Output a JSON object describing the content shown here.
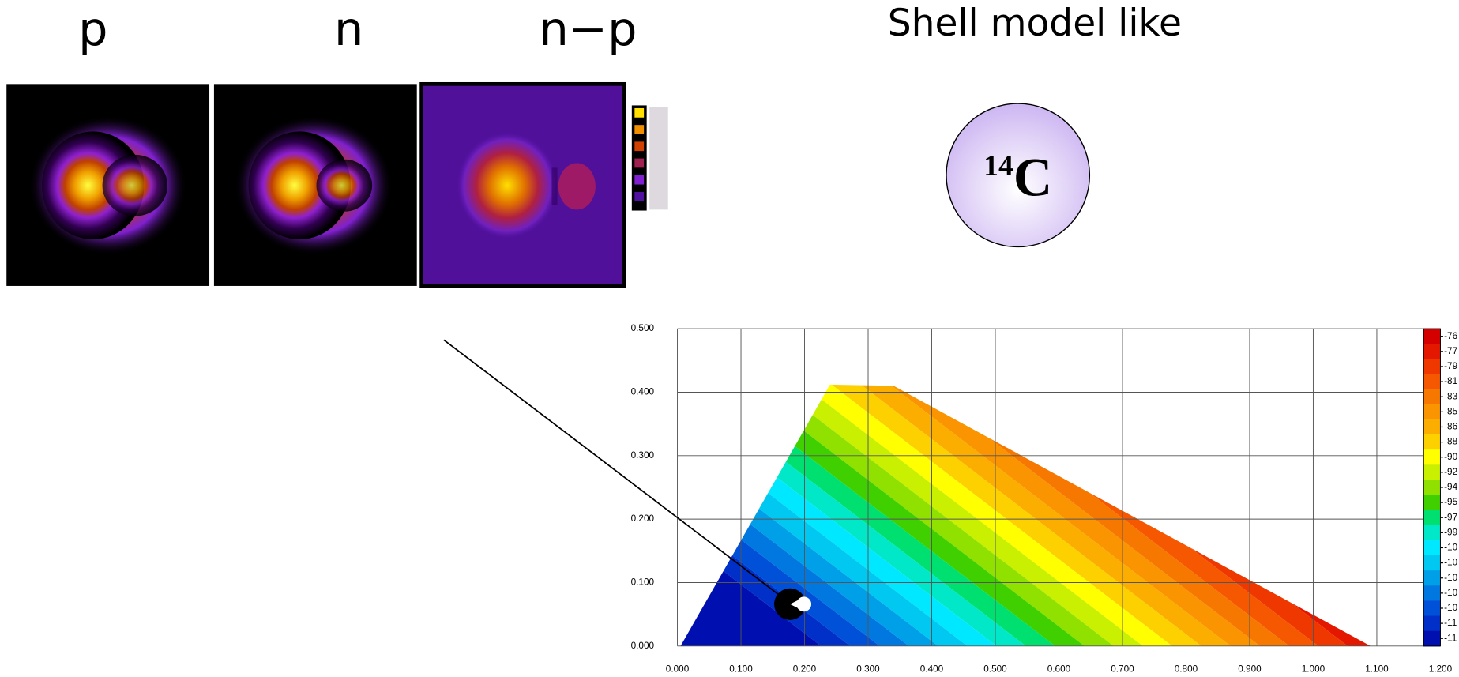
{
  "panels": [
    {
      "label": "p"
    },
    {
      "label": "n"
    },
    {
      "label": "n−p"
    }
  ],
  "heading": "Shell model like",
  "nucleus": {
    "mass_number": "14",
    "symbol": "C"
  },
  "chart_data": {
    "type": "contour",
    "grid": true,
    "xlim": [
      0,
      1.2
    ],
    "ylim": [
      0,
      0.5
    ],
    "xticks": [
      {
        "value": 0,
        "label": "0.000"
      },
      {
        "value": 0.1,
        "label": "0.100"
      },
      {
        "value": 0.2,
        "label": "0.200"
      },
      {
        "value": 0.3,
        "label": "0.300"
      },
      {
        "value": 0.4,
        "label": "0.400"
      },
      {
        "value": 0.5,
        "label": "0.500"
      },
      {
        "value": 0.6,
        "label": "0.600"
      },
      {
        "value": 0.7,
        "label": "0.700"
      },
      {
        "value": 0.8,
        "label": "0.800"
      },
      {
        "value": 0.9,
        "label": "0.900"
      },
      {
        "value": 1.0,
        "label": "1.000"
      },
      {
        "value": 1.1,
        "label": "1.100"
      },
      {
        "value": 1.2,
        "label": "1.200"
      }
    ],
    "yticks": [
      {
        "value": 0,
        "label": "0.000"
      },
      {
        "value": 0.1,
        "label": "0.100"
      },
      {
        "value": 0.2,
        "label": "0.200"
      },
      {
        "value": 0.3,
        "label": "0.300"
      },
      {
        "value": 0.4,
        "label": "0.400"
      },
      {
        "value": 0.5,
        "label": "0.500"
      }
    ],
    "colorbar_labels": [
      "-76",
      "-77",
      "-79",
      "-81",
      "-83",
      "-85",
      "-86",
      "-88",
      "-90",
      "-92",
      "-94",
      "-95",
      "-97",
      "-99",
      "-10",
      "-10",
      "-10",
      "-10",
      "-10",
      "-11",
      "-11"
    ],
    "colorbar_colors": [
      "#d40000",
      "#e41800",
      "#ef3800",
      "#f55800",
      "#f77800",
      "#fa9400",
      "#fbae00",
      "#fdd000",
      "#ffff00",
      "#c8f000",
      "#90e000",
      "#40d000",
      "#00e070",
      "#00e8c8",
      "#00e8ff",
      "#00c8f0",
      "#00a0e8",
      "#0078e0",
      "#0050d8",
      "#0030c8",
      "#0010b0"
    ]
  }
}
